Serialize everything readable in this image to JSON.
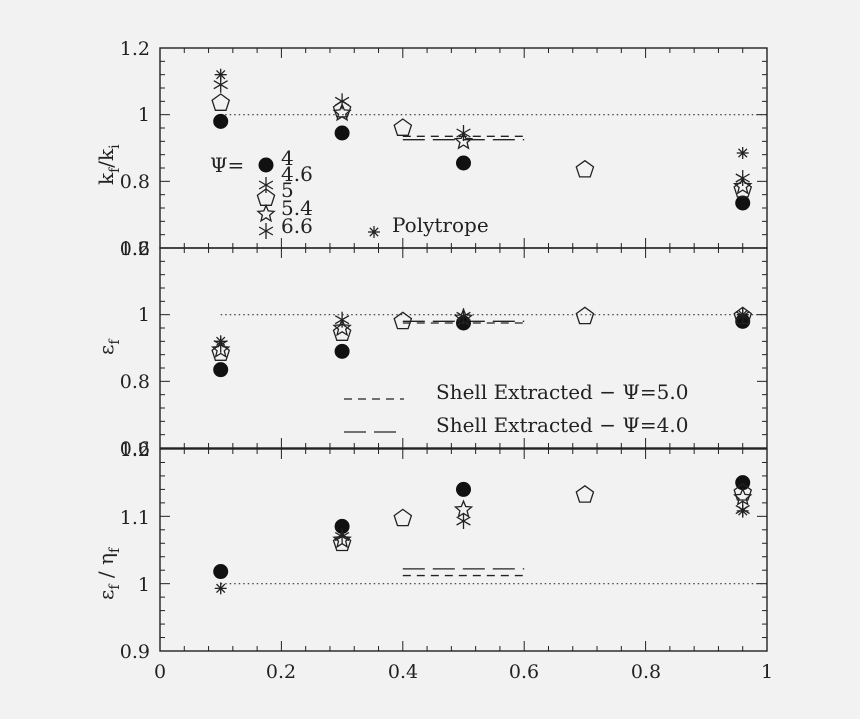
{
  "chart_data": [
    {
      "type": "scatter",
      "ylabel_main": "k",
      "ylabel_sub_a": "f",
      "ylabel_slash": "/k",
      "ylabel_sub_b": "i",
      "xlim": [
        0,
        1
      ],
      "ylim": [
        0.6,
        1.2
      ],
      "yticks": [
        "1.2",
        "1",
        "0.8",
        "0.6"
      ],
      "reference_line": 1.0,
      "legend_title": "Ψ=",
      "legend": [
        "4",
        "4.6",
        "5",
        "5.4",
        "6.6",
        "Polytrope"
      ],
      "series": [
        {
          "marker": "filled-circle",
          "points": [
            [
              0.1,
              0.98
            ],
            [
              0.3,
              0.945
            ],
            [
              0.5,
              0.855
            ],
            [
              0.96,
              0.735
            ]
          ]
        },
        {
          "marker": "pentagon",
          "points": [
            [
              0.1,
              1.035
            ],
            [
              0.3,
              1.015
            ],
            [
              0.4,
              0.96
            ],
            [
              0.7,
              0.835
            ],
            [
              0.96,
              0.775
            ]
          ]
        },
        {
          "marker": "star",
          "points": [
            [
              0.3,
              1.005
            ],
            [
              0.5,
              0.92
            ],
            [
              0.96,
              0.785
            ]
          ]
        },
        {
          "marker": "asterisk6",
          "points": [
            [
              0.1,
              1.09
            ],
            [
              0.3,
              1.04
            ],
            [
              0.5,
              0.945
            ],
            [
              0.96,
              0.81
            ]
          ]
        },
        {
          "marker": "asterisk8",
          "points": [
            [
              0.1,
              1.12
            ],
            [
              0.96,
              0.885
            ]
          ]
        }
      ],
      "shell_lines": [
        {
          "style": "dashed",
          "x": [
            0.4,
            0.6
          ],
          "y": 0.935
        },
        {
          "style": "longdash",
          "x": [
            0.4,
            0.6
          ],
          "y": 0.925
        }
      ]
    },
    {
      "type": "scatter",
      "ylabel_main": "ε",
      "ylabel_sub": "f",
      "xlim": [
        0,
        1
      ],
      "ylim": [
        0.6,
        1.2
      ],
      "yticks": [
        "1.2",
        "1",
        "0.8",
        "0.6"
      ],
      "reference_line": 1.0,
      "legend": [
        "Shell Extracted  −  Ψ=5.0",
        "Shell Extracted  −  Ψ=4.0"
      ],
      "series": [
        {
          "marker": "filled-circle",
          "points": [
            [
              0.1,
              0.835
            ],
            [
              0.3,
              0.89
            ],
            [
              0.5,
              0.975
            ],
            [
              0.96,
              0.98
            ]
          ]
        },
        {
          "marker": "pentagon",
          "points": [
            [
              0.1,
              0.885
            ],
            [
              0.3,
              0.945
            ],
            [
              0.4,
              0.98
            ],
            [
              0.7,
              0.995
            ],
            [
              0.96,
              0.995
            ]
          ]
        },
        {
          "marker": "star",
          "points": [
            [
              0.1,
              0.895
            ],
            [
              0.3,
              0.96
            ],
            [
              0.5,
              0.99
            ]
          ]
        },
        {
          "marker": "asterisk6",
          "points": [
            [
              0.1,
              0.91
            ],
            [
              0.3,
              0.985
            ],
            [
              0.5,
              0.995
            ],
            [
              0.96,
              0.997
            ]
          ]
        },
        {
          "marker": "asterisk8",
          "points": [
            [
              0.1,
              0.92
            ],
            [
              0.96,
              1.0
            ]
          ]
        }
      ],
      "shell_lines": [
        {
          "style": "dashed",
          "x": [
            0.4,
            0.6
          ],
          "y": 0.975
        },
        {
          "style": "longdash",
          "x": [
            0.4,
            0.6
          ],
          "y": 0.98
        }
      ]
    },
    {
      "type": "scatter",
      "ylabel_main": "ε",
      "ylabel_sub_a": "f",
      "ylabel_slash": " /  η",
      "ylabel_sub_b": "f",
      "xlim": [
        0,
        1
      ],
      "ylim": [
        0.9,
        1.2
      ],
      "xticks": [
        "0",
        "0.2",
        "0.4",
        "0.6",
        "0.8",
        "1"
      ],
      "yticks": [
        "1.2",
        "1.1",
        "1",
        "0.9"
      ],
      "reference_line": 1.0,
      "series": [
        {
          "marker": "filled-circle",
          "points": [
            [
              0.1,
              1.018
            ],
            [
              0.3,
              1.085
            ],
            [
              0.5,
              1.14
            ],
            [
              0.96,
              1.15
            ]
          ]
        },
        {
          "marker": "pentagon",
          "points": [
            [
              0.3,
              1.06
            ],
            [
              0.4,
              1.097
            ],
            [
              0.7,
              1.132
            ],
            [
              0.96,
              1.135
            ]
          ]
        },
        {
          "marker": "star",
          "points": [
            [
              0.3,
              1.065
            ],
            [
              0.5,
              1.11
            ],
            [
              0.96,
              1.128
            ]
          ]
        },
        {
          "marker": "asterisk6",
          "points": [
            [
              0.3,
              1.07
            ],
            [
              0.5,
              1.093
            ],
            [
              0.96,
              1.11
            ]
          ]
        },
        {
          "marker": "asterisk8",
          "points": [
            [
              0.1,
              0.993
            ],
            [
              0.96,
              1.108
            ]
          ]
        }
      ],
      "shell_lines": [
        {
          "style": "dashed",
          "x": [
            0.4,
            0.6
          ],
          "y": 1.012
        },
        {
          "style": "longdash",
          "x": [
            0.4,
            0.6
          ],
          "y": 1.022
        }
      ]
    }
  ]
}
